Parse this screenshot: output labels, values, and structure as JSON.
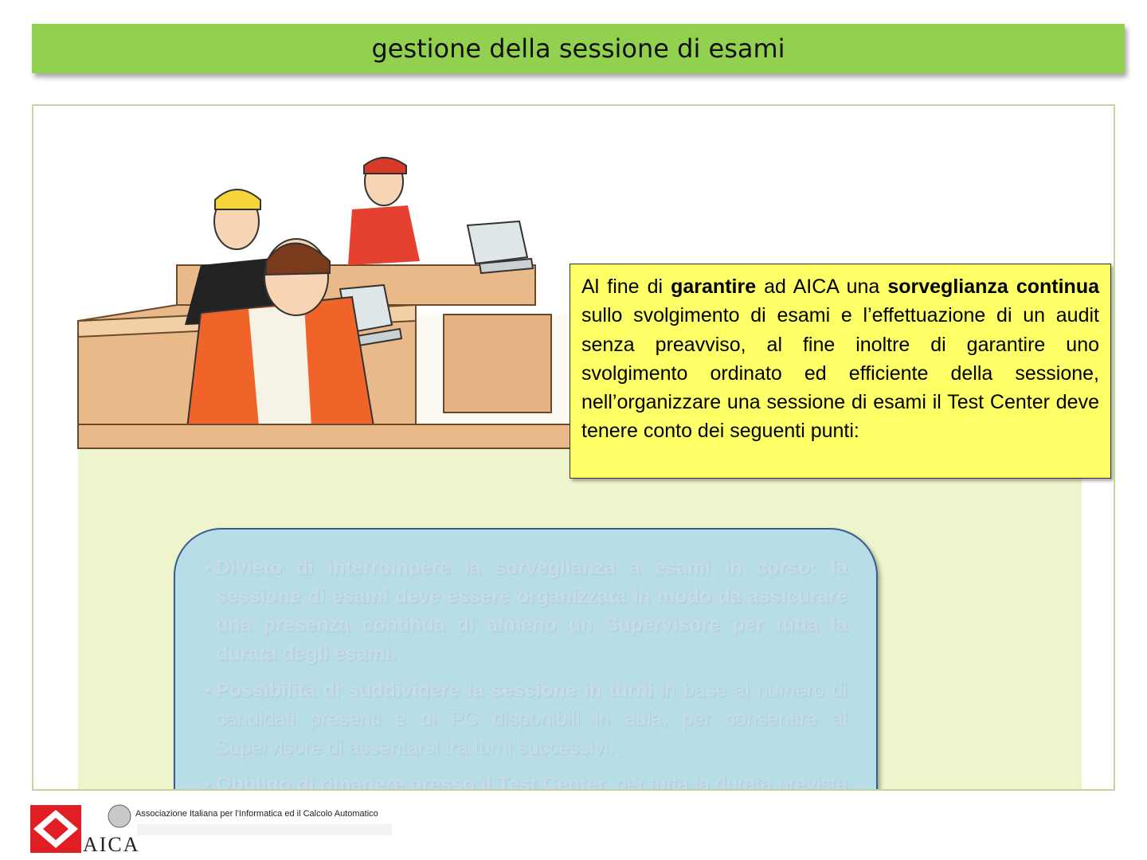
{
  "slide": {
    "title": "gestione della sessione di esami"
  },
  "callout": {
    "parts": [
      {
        "text": "Al fine di ",
        "bold": false
      },
      {
        "text": "garantire",
        "bold": true
      },
      {
        "text": " ad AICA una ",
        "bold": false
      },
      {
        "text": "sorveglianza continua",
        "bold": true
      },
      {
        "text": " sullo svolgimento di esami e l’effettuazione di un audit senza preavviso, al fine inoltre di garantire uno svolgimento ordinato ed efficiente della sessione, nell’organizzare una sessione di esami il Test Center deve tenere conto dei seguenti punti:",
        "bold": false
      }
    ]
  },
  "bullets": [
    {
      "bold": "Divieto di interrompere la sorveglianza a esami in corso: la sessione di esami deve essere organizzata in modo da assicurare una presenza continua di almeno un Supervisore per tutta la durata degli esami.",
      "rest": ""
    },
    {
      "bold": "Possibilità di suddividere la sessione in turni",
      "rest": " in base al numero di candidati presenti e di PC disponibili in aula, per consentire al Supervisore di assentarsi tra turni successivi."
    },
    {
      "bold": "Obbligo di rimanere presso il Test Center,",
      "rest": " per tutta la durata prevista della sessione di esami, al fine di consentire ad AICA verifiche ispettive senza preavviso."
    }
  ],
  "footer": {
    "association": "Associazione Italiana per l'Informatica ed il Calcolo Automatico",
    "brand": "AICA"
  },
  "colors": {
    "title_bar": "#92d050",
    "callout_bg": "#ffff66",
    "bubble_bg": "#b7dde8",
    "bubble_border": "#385d8a",
    "logo_red": "#e01e24"
  },
  "illustration": {
    "description_icon": "classroom-exam-illustration"
  }
}
